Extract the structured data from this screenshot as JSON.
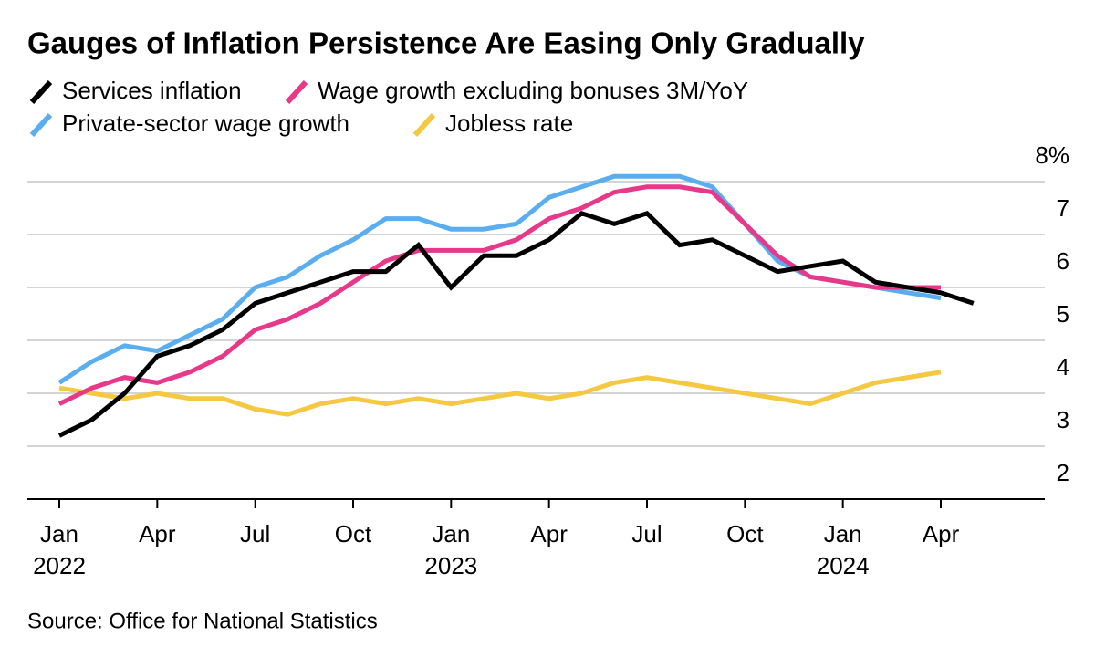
{
  "chart_data": {
    "type": "line",
    "title": "Gauges of Inflation Persistence Are Easing Only Gradually",
    "source": "Source: Office for National Statistics",
    "categories": [
      "Jan",
      null,
      null,
      "Apr",
      null,
      null,
      "Jul",
      null,
      null,
      "Oct",
      null,
      null,
      "Jan",
      null,
      null,
      "Apr",
      null,
      null,
      "Jul",
      null,
      null,
      "Oct",
      null,
      null,
      "Jan",
      null,
      null,
      "Apr",
      null
    ],
    "category_years": [
      "2022",
      null,
      null,
      null,
      null,
      null,
      null,
      null,
      null,
      null,
      null,
      null,
      "2023",
      null,
      null,
      null,
      null,
      null,
      null,
      null,
      null,
      null,
      null,
      null,
      "2024",
      null,
      null,
      null,
      null
    ],
    "series": [
      {
        "name": "Services inflation",
        "color": "#000000",
        "values": [
          3.2,
          3.5,
          4.0,
          4.7,
          4.9,
          5.2,
          5.7,
          5.9,
          6.1,
          6.3,
          6.3,
          6.8,
          6.0,
          6.6,
          6.6,
          6.9,
          7.4,
          7.2,
          7.4,
          6.8,
          6.9,
          6.6,
          6.3,
          6.4,
          6.5,
          6.1,
          6.0,
          5.9,
          5.7
        ]
      },
      {
        "name": "Wage growth excluding bonuses 3M/YoY",
        "color": "#e8388a",
        "values": [
          3.8,
          4.1,
          4.3,
          4.2,
          4.4,
          4.7,
          5.2,
          5.4,
          5.7,
          6.1,
          6.5,
          6.7,
          6.7,
          6.7,
          6.9,
          7.3,
          7.5,
          7.8,
          7.9,
          7.9,
          7.8,
          7.2,
          6.6,
          6.2,
          6.1,
          6.0,
          6.0,
          6.0,
          null
        ]
      },
      {
        "name": "Private-sector wage growth",
        "color": "#5aaef0",
        "values": [
          4.2,
          4.6,
          4.9,
          4.8,
          5.1,
          5.4,
          6.0,
          6.2,
          6.6,
          6.9,
          7.3,
          7.3,
          7.1,
          7.1,
          7.2,
          7.7,
          7.9,
          8.1,
          8.1,
          8.1,
          7.9,
          7.2,
          6.5,
          6.2,
          6.1,
          6.0,
          5.9,
          5.8,
          null
        ]
      },
      {
        "name": "Jobless rate",
        "color": "#f5c842",
        "values": [
          4.1,
          4.0,
          3.9,
          4.0,
          3.9,
          3.9,
          3.7,
          3.6,
          3.8,
          3.9,
          3.8,
          3.9,
          3.8,
          3.9,
          4.0,
          3.9,
          4.0,
          4.2,
          4.3,
          4.2,
          4.1,
          4.0,
          3.9,
          3.8,
          4.0,
          4.2,
          4.3,
          4.4,
          null
        ]
      }
    ],
    "ylim": [
      2,
      8
    ],
    "yticks": [
      2,
      3,
      4,
      5,
      6,
      7,
      {
        "value": 8,
        "label": "8%"
      }
    ],
    "grid": true
  }
}
